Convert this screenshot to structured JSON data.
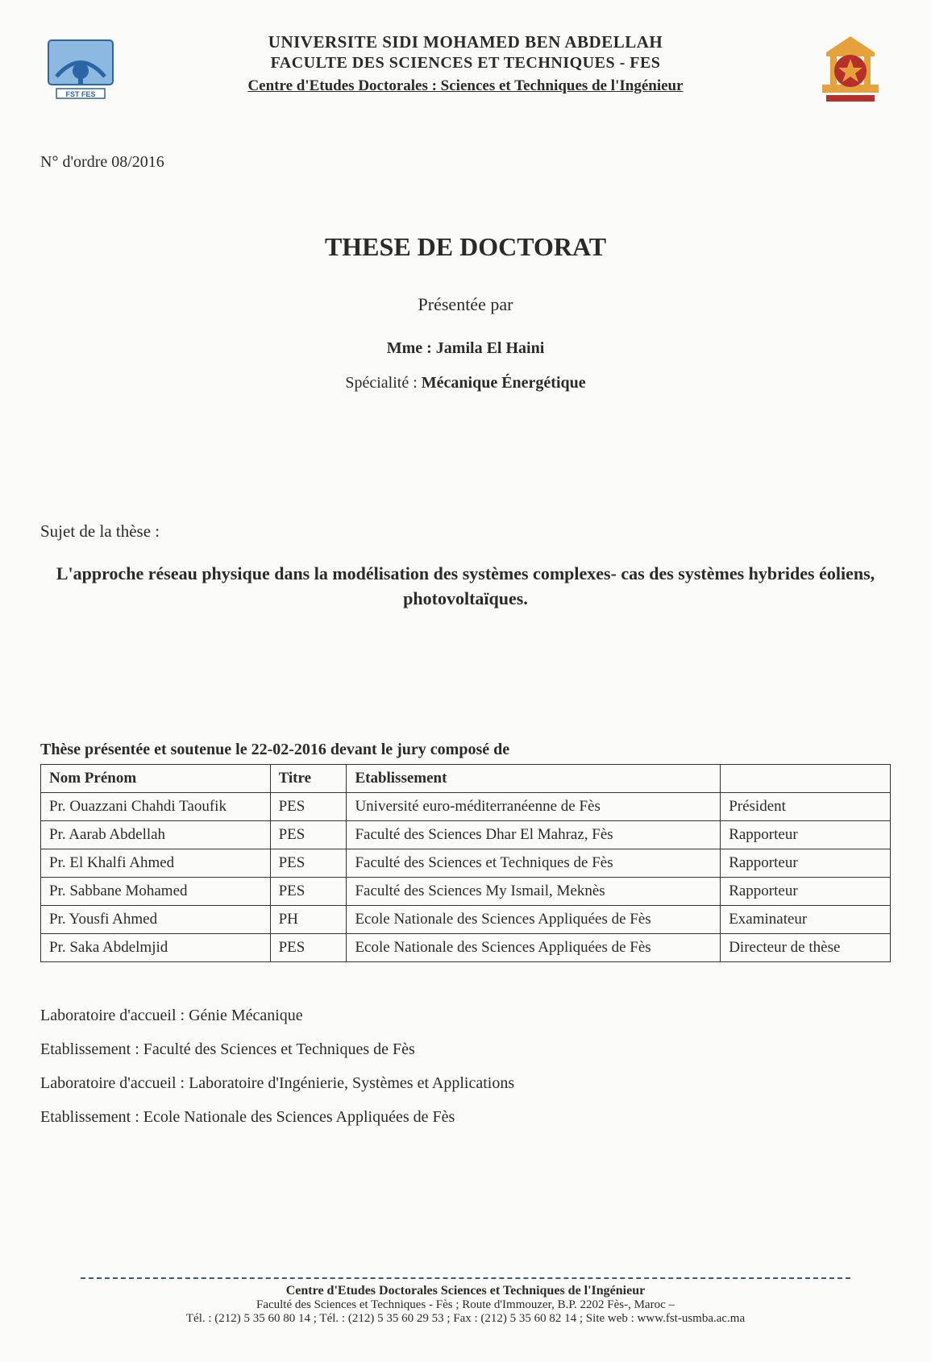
{
  "header": {
    "line1": "UNIVERSITE SIDI MOHAMED BEN ABDELLAH",
    "line2": "FACULTE DES SCIENCES ET TECHNIQUES - FES",
    "line3": "Centre d'Etudes Doctorales : Sciences et Techniques de l'Ingénieur"
  },
  "order_number": "N° d'ordre 08/2016",
  "title_main": "THESE DE DOCTORAT",
  "presented_by": "Présentée par",
  "author": "Mme : Jamila El Haini",
  "specialty_label": "Spécialité : ",
  "specialty_value": "Mécanique Énergétique",
  "subject_label": "Sujet de la thèse :",
  "subject_title": "L'approche réseau physique dans la modélisation des systèmes complexes- cas des systèmes hybrides éoliens, photovoltaïques.",
  "jury_heading": "Thèse présentée et soutenue le 22-02-2016 devant le jury composé de",
  "jury_table": {
    "columns": [
      "Nom Prénom",
      "Titre",
      "Etablissement",
      ""
    ],
    "rows": [
      [
        "Pr. Ouazzani Chahdi Taoufik",
        "PES",
        "Université euro-méditerranéenne de Fès",
        "Président"
      ],
      [
        "Pr. Aarab Abdellah",
        "PES",
        "Faculté des Sciences Dhar El Mahraz, Fès",
        "Rapporteur"
      ],
      [
        "Pr. El Khalfi Ahmed",
        "PES",
        "Faculté des Sciences et Techniques de Fès",
        "Rapporteur"
      ],
      [
        "Pr. Sabbane Mohamed",
        "PES",
        "Faculté des Sciences My Ismail, Meknès",
        "Rapporteur"
      ],
      [
        "Pr. Yousfi Ahmed",
        "PH",
        "Ecole Nationale des Sciences Appliquées de Fès",
        "Examinateur"
      ],
      [
        "Pr. Saka Abdelmjid",
        "PES",
        "Ecole Nationale des Sciences Appliquées de Fès",
        "Directeur de thèse"
      ]
    ]
  },
  "lab_lines": [
    "Laboratoire d'accueil : Génie Mécanique",
    "Etablissement : Faculté des Sciences et Techniques de Fès",
    "Laboratoire d'accueil : Laboratoire d'Ingénierie, Systèmes et Applications",
    "Etablissement : Ecole Nationale des Sciences Appliquées de Fès"
  ],
  "footer": {
    "line1": "Centre d'Etudes Doctorales Sciences et Techniques de l'Ingénieur",
    "line2": "Faculté des Sciences et Techniques - Fès ; Route d'Immouzer, B.P. 2202 Fès-, Maroc –",
    "line3": "Tél. : (212) 5 35 60 80 14 ; Tél. : (212) 5 35 60 29 53 ;   Fax : (212) 5 35 60 82  14 ;   Site web : www.fst-usmba.ac.ma"
  },
  "colors": {
    "text": "#2a2a2a",
    "background": "#fbfcf9",
    "border": "#333333",
    "separator": "#3a5a7a",
    "logo_left_primary": "#2b65a6",
    "logo_left_accent": "#8db8e0",
    "logo_right_primary": "#b5302a",
    "logo_right_accent": "#e6a23a"
  }
}
